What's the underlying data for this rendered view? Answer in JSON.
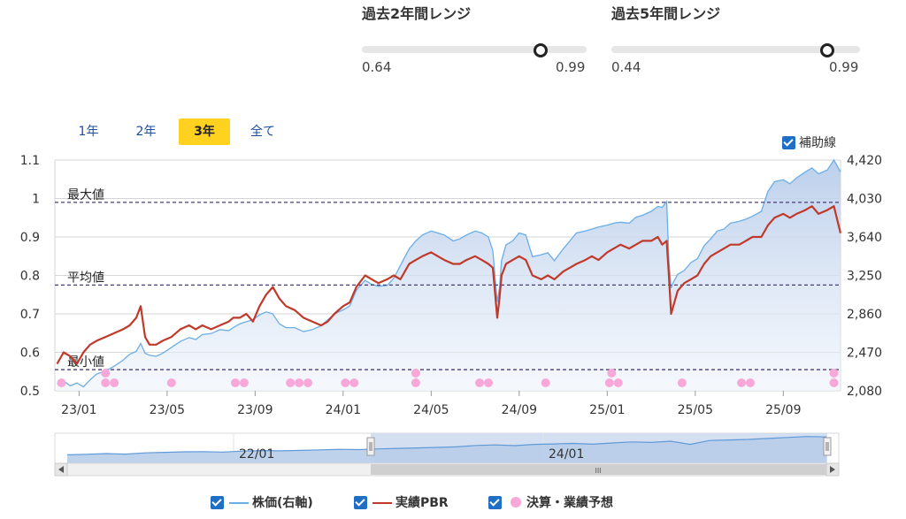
{
  "ranges": [
    {
      "title": "過去2年間レンジ",
      "min": "0.64",
      "max": "0.99",
      "level": 0.92
    },
    {
      "title": "過去5年間レンジ",
      "min": "0.44",
      "max": "0.99",
      "level": 0.95
    }
  ],
  "period_tabs": [
    {
      "label": "1年",
      "active": false
    },
    {
      "label": "2年",
      "active": false
    },
    {
      "label": "3年",
      "active": true
    },
    {
      "label": "全て",
      "active": false
    }
  ],
  "aux_toggle_label": "補助線",
  "legend": [
    {
      "label": "株価(右軸)",
      "color": "#6aaee8",
      "kind": "line"
    },
    {
      "label": "実績PBR",
      "color": "#c0392b",
      "kind": "line"
    },
    {
      "label": "決算・業績予想",
      "color": "#f7a8d8",
      "kind": "dot"
    }
  ],
  "colors": {
    "price": "#6aaee8",
    "price_fill_top": "#b8cdea",
    "pbr": "#c0392b",
    "event": "#f7a8d8",
    "refline": "#4b3c78"
  },
  "chart_data": {
    "type": "line",
    "left_axis": {
      "min": 0.5,
      "max": 1.1,
      "ticks": [
        "1.1",
        "1",
        "0.9",
        "0.8",
        "0.7",
        "0.6",
        "0.5"
      ]
    },
    "right_axis": {
      "min": 2080,
      "max": 4420,
      "ticks": [
        "4,420",
        "4,030",
        "3,640",
        "3,250",
        "2,860",
        "2,470",
        "2,080"
      ]
    },
    "x_ticks": [
      "23/01",
      "23/05",
      "23/09",
      "24/01",
      "24/05",
      "24/09",
      "25/01",
      "25/05",
      "25/09"
    ],
    "x_tick_months": [
      1,
      5,
      9,
      13,
      17,
      21,
      25,
      29,
      33
    ],
    "x_range_months": [
      -0.1,
      35.6
    ],
    "reference_lines": [
      {
        "label": "最大値",
        "value": 0.99
      },
      {
        "label": "平均値",
        "value": 0.775
      },
      {
        "label": "最小値",
        "value": 0.555
      }
    ],
    "series": [
      {
        "name": "株価(右軸)",
        "axis": "right",
        "x": [
          0,
          0.3,
          0.6,
          0.9,
          1.2,
          1.5,
          1.8,
          2.2,
          2.6,
          3.0,
          3.3,
          3.6,
          3.8,
          4.0,
          4.2,
          4.5,
          4.8,
          5.2,
          5.6,
          6.0,
          6.3,
          6.6,
          7.0,
          7.4,
          7.8,
          8.0,
          8.3,
          8.6,
          8.9,
          9.2,
          9.5,
          9.8,
          10.1,
          10.4,
          10.8,
          11.2,
          11.6,
          12.0,
          12.3,
          12.6,
          13.0,
          13.3,
          13.6,
          14.0,
          14.3,
          14.6,
          15.0,
          15.3,
          15.6,
          16.0,
          16.3,
          16.6,
          17.0,
          17.3,
          17.6,
          18.0,
          18.3,
          18.6,
          19.0,
          19.3,
          19.6,
          19.8,
          20.0,
          20.1,
          20.2,
          20.4,
          20.7,
          21.0,
          21.3,
          21.6,
          22.0,
          22.3,
          22.6,
          23.0,
          23.3,
          23.6,
          24.0,
          24.3,
          24.6,
          25.0,
          25.3,
          25.6,
          26.0,
          26.3,
          26.6,
          27.0,
          27.3,
          27.5,
          27.7,
          27.8,
          27.9,
          28.0,
          28.2,
          28.5,
          28.8,
          29.1,
          29.4,
          29.7,
          30.0,
          30.3,
          30.6,
          31.0,
          31.3,
          31.6,
          32.0,
          32.3,
          32.6,
          33.0,
          33.3,
          33.6,
          34.0,
          34.3,
          34.6,
          35.0,
          35.3,
          35.6
        ],
        "values": [
          2150,
          2180,
          2130,
          2160,
          2120,
          2190,
          2250,
          2280,
          2330,
          2390,
          2450,
          2480,
          2560,
          2460,
          2440,
          2430,
          2460,
          2520,
          2580,
          2620,
          2600,
          2650,
          2660,
          2700,
          2690,
          2720,
          2760,
          2780,
          2800,
          2850,
          2880,
          2860,
          2760,
          2720,
          2720,
          2680,
          2700,
          2740,
          2800,
          2860,
          2900,
          2940,
          3100,
          3200,
          3160,
          3140,
          3150,
          3220,
          3350,
          3520,
          3600,
          3660,
          3700,
          3680,
          3660,
          3600,
          3620,
          3660,
          3700,
          3680,
          3640,
          3500,
          2980,
          3120,
          3400,
          3560,
          3600,
          3680,
          3660,
          3440,
          3460,
          3480,
          3400,
          3520,
          3600,
          3680,
          3700,
          3720,
          3740,
          3760,
          3780,
          3790,
          3780,
          3840,
          3860,
          3900,
          3950,
          3940,
          4000,
          3400,
          3120,
          3180,
          3260,
          3300,
          3380,
          3420,
          3550,
          3620,
          3700,
          3720,
          3780,
          3800,
          3820,
          3850,
          3900,
          4100,
          4200,
          4220,
          4180,
          4240,
          4300,
          4340,
          4280,
          4320,
          4420,
          4300
        ]
      },
      {
        "name": "実績PBR",
        "axis": "left",
        "x": [
          0,
          0.3,
          0.6,
          0.9,
          1.2,
          1.5,
          1.8,
          2.2,
          2.6,
          3.0,
          3.3,
          3.6,
          3.8,
          4.0,
          4.2,
          4.5,
          4.8,
          5.2,
          5.6,
          6.0,
          6.3,
          6.6,
          7.0,
          7.4,
          7.8,
          8.0,
          8.3,
          8.6,
          8.9,
          9.2,
          9.5,
          9.8,
          10.1,
          10.4,
          10.8,
          11.2,
          11.6,
          12.0,
          12.3,
          12.6,
          13.0,
          13.3,
          13.6,
          14.0,
          14.3,
          14.6,
          15.0,
          15.3,
          15.6,
          16.0,
          16.3,
          16.6,
          17.0,
          17.3,
          17.6,
          18.0,
          18.3,
          18.6,
          19.0,
          19.3,
          19.6,
          19.8,
          20.0,
          20.1,
          20.2,
          20.4,
          20.7,
          21.0,
          21.3,
          21.6,
          22.0,
          22.3,
          22.6,
          23.0,
          23.3,
          23.6,
          24.0,
          24.3,
          24.6,
          25.0,
          25.3,
          25.6,
          26.0,
          26.3,
          26.6,
          27.0,
          27.3,
          27.5,
          27.7,
          27.8,
          27.9,
          28.0,
          28.2,
          28.5,
          28.8,
          29.1,
          29.4,
          29.7,
          30.0,
          30.3,
          30.6,
          31.0,
          31.3,
          31.6,
          32.0,
          32.3,
          32.6,
          33.0,
          33.3,
          33.6,
          34.0,
          34.3,
          34.6,
          35.0,
          35.3,
          35.6
        ],
        "values": [
          0.57,
          0.6,
          0.59,
          0.57,
          0.6,
          0.62,
          0.63,
          0.64,
          0.65,
          0.66,
          0.67,
          0.69,
          0.72,
          0.64,
          0.62,
          0.62,
          0.63,
          0.64,
          0.66,
          0.67,
          0.66,
          0.67,
          0.66,
          0.67,
          0.68,
          0.69,
          0.69,
          0.7,
          0.68,
          0.72,
          0.75,
          0.77,
          0.74,
          0.72,
          0.71,
          0.69,
          0.68,
          0.67,
          0.68,
          0.7,
          0.72,
          0.73,
          0.77,
          0.8,
          0.79,
          0.78,
          0.79,
          0.8,
          0.79,
          0.83,
          0.84,
          0.85,
          0.86,
          0.85,
          0.84,
          0.83,
          0.83,
          0.84,
          0.85,
          0.84,
          0.83,
          0.82,
          0.69,
          0.74,
          0.8,
          0.83,
          0.84,
          0.85,
          0.84,
          0.8,
          0.79,
          0.8,
          0.79,
          0.81,
          0.82,
          0.83,
          0.84,
          0.85,
          0.84,
          0.86,
          0.87,
          0.88,
          0.87,
          0.88,
          0.89,
          0.89,
          0.9,
          0.88,
          0.89,
          0.8,
          0.7,
          0.72,
          0.76,
          0.78,
          0.79,
          0.8,
          0.83,
          0.85,
          0.86,
          0.87,
          0.88,
          0.88,
          0.89,
          0.9,
          0.9,
          0.93,
          0.95,
          0.96,
          0.95,
          0.96,
          0.97,
          0.98,
          0.96,
          0.97,
          0.98,
          0.91
        ]
      }
    ],
    "events": [
      {
        "x": 0.2,
        "row": 1
      },
      {
        "x": 2.2,
        "row": 0
      },
      {
        "x": 2.2,
        "row": 1
      },
      {
        "x": 2.6,
        "row": 1
      },
      {
        "x": 5.2,
        "row": 1
      },
      {
        "x": 8.1,
        "row": 1
      },
      {
        "x": 8.5,
        "row": 1
      },
      {
        "x": 10.6,
        "row": 1
      },
      {
        "x": 11.0,
        "row": 1
      },
      {
        "x": 11.4,
        "row": 1
      },
      {
        "x": 13.1,
        "row": 1
      },
      {
        "x": 13.5,
        "row": 1
      },
      {
        "x": 16.3,
        "row": 0
      },
      {
        "x": 16.3,
        "row": 1
      },
      {
        "x": 19.2,
        "row": 1
      },
      {
        "x": 19.6,
        "row": 1
      },
      {
        "x": 22.2,
        "row": 1
      },
      {
        "x": 25.2,
        "row": 0
      },
      {
        "x": 25.1,
        "row": 1
      },
      {
        "x": 25.5,
        "row": 1
      },
      {
        "x": 28.4,
        "row": 1
      },
      {
        "x": 31.1,
        "row": 1
      },
      {
        "x": 31.5,
        "row": 1
      },
      {
        "x": 35.3,
        "row": 0
      },
      {
        "x": 35.3,
        "row": 1
      }
    ]
  },
  "navigator": {
    "labels": [
      "22/01",
      "24/01"
    ],
    "values": [
      0.2,
      0.22,
      0.25,
      0.23,
      0.28,
      0.3,
      0.32,
      0.33,
      0.31,
      0.35,
      0.37,
      0.36,
      0.38,
      0.4,
      0.42,
      0.41,
      0.44,
      0.46,
      0.48,
      0.5,
      0.52,
      0.58,
      0.6,
      0.57,
      0.62,
      0.64,
      0.66,
      0.63,
      0.68,
      0.72,
      0.7,
      0.75,
      0.62,
      0.78,
      0.8,
      0.82,
      0.86,
      0.9,
      0.94,
      0.92
    ],
    "grip": "III"
  }
}
